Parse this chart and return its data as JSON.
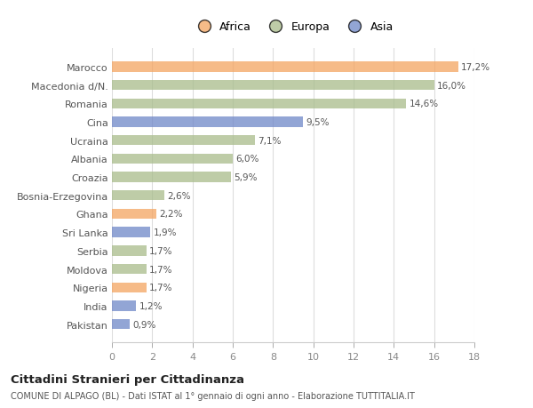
{
  "categories": [
    "Pakistan",
    "India",
    "Nigeria",
    "Moldova",
    "Serbia",
    "Sri Lanka",
    "Ghana",
    "Bosnia-Erzegovina",
    "Croazia",
    "Albania",
    "Ucraina",
    "Cina",
    "Romania",
    "Macedonia d/N.",
    "Marocco"
  ],
  "values": [
    0.9,
    1.2,
    1.7,
    1.7,
    1.7,
    1.9,
    2.2,
    2.6,
    5.9,
    6.0,
    7.1,
    9.5,
    14.6,
    16.0,
    17.2
  ],
  "labels": [
    "0,9%",
    "1,2%",
    "1,7%",
    "1,7%",
    "1,7%",
    "1,9%",
    "2,2%",
    "2,6%",
    "5,9%",
    "6,0%",
    "7,1%",
    "9,5%",
    "14,6%",
    "16,0%",
    "17,2%"
  ],
  "colors": [
    "#6e87c8",
    "#6e87c8",
    "#f4a460",
    "#a8bc8a",
    "#a8bc8a",
    "#6e87c8",
    "#f4a460",
    "#a8bc8a",
    "#a8bc8a",
    "#a8bc8a",
    "#a8bc8a",
    "#6e87c8",
    "#a8bc8a",
    "#a8bc8a",
    "#f4a460"
  ],
  "legend": [
    {
      "label": "Africa",
      "color": "#f4a460"
    },
    {
      "label": "Europa",
      "color": "#a8bc8a"
    },
    {
      "label": "Asia",
      "color": "#6e87c8"
    }
  ],
  "xlim": [
    0,
    18
  ],
  "xticks": [
    0,
    2,
    4,
    6,
    8,
    10,
    12,
    14,
    16,
    18
  ],
  "title": "Cittadini Stranieri per Cittadinanza",
  "subtitle": "COMUNE DI ALPAGO (BL) - Dati ISTAT al 1° gennaio di ogni anno - Elaborazione TUTTITALIA.IT",
  "background_color": "#ffffff",
  "bar_alpha": 0.75,
  "bar_height": 0.55
}
